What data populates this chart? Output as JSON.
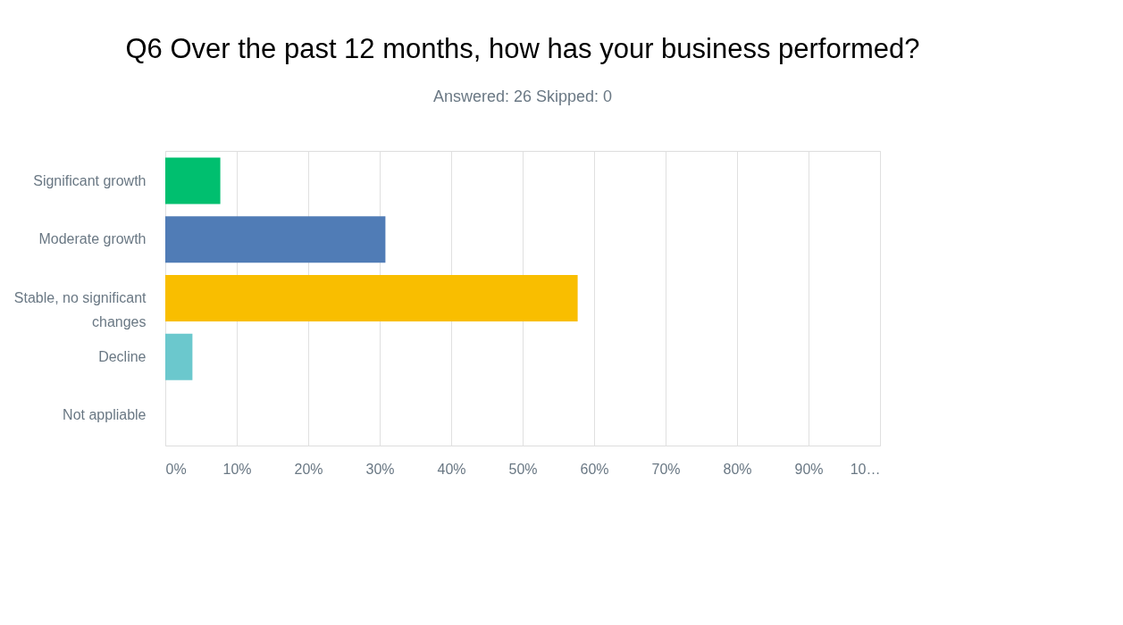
{
  "chart_data": {
    "type": "bar",
    "orientation": "horizontal",
    "title": "Q6 Over the past 12 months, how has your business performed?",
    "subtitle": "Answered: 26     Skipped: 0",
    "categories": [
      "Significant growth",
      "Moderate growth",
      "Stable, no significant changes",
      "Decline",
      "Not appliable"
    ],
    "values": [
      7.7,
      30.8,
      57.7,
      3.8,
      0
    ],
    "colors": [
      "#00bf6f",
      "#507cb6",
      "#f9be00",
      "#6bc8cd",
      "#a0a0a0"
    ],
    "xlim": [
      0,
      100
    ],
    "xticks": [
      {
        "value": 0,
        "label": "0%"
      },
      {
        "value": 10,
        "label": "10%"
      },
      {
        "value": 20,
        "label": "20%"
      },
      {
        "value": 30,
        "label": "30%"
      },
      {
        "value": 40,
        "label": "40%"
      },
      {
        "value": 50,
        "label": "50%"
      },
      {
        "value": 60,
        "label": "60%"
      },
      {
        "value": 70,
        "label": "70%"
      },
      {
        "value": 80,
        "label": "80%"
      },
      {
        "value": 90,
        "label": "90%"
      },
      {
        "value": 100,
        "label": "10…"
      }
    ],
    "grid": "x"
  }
}
